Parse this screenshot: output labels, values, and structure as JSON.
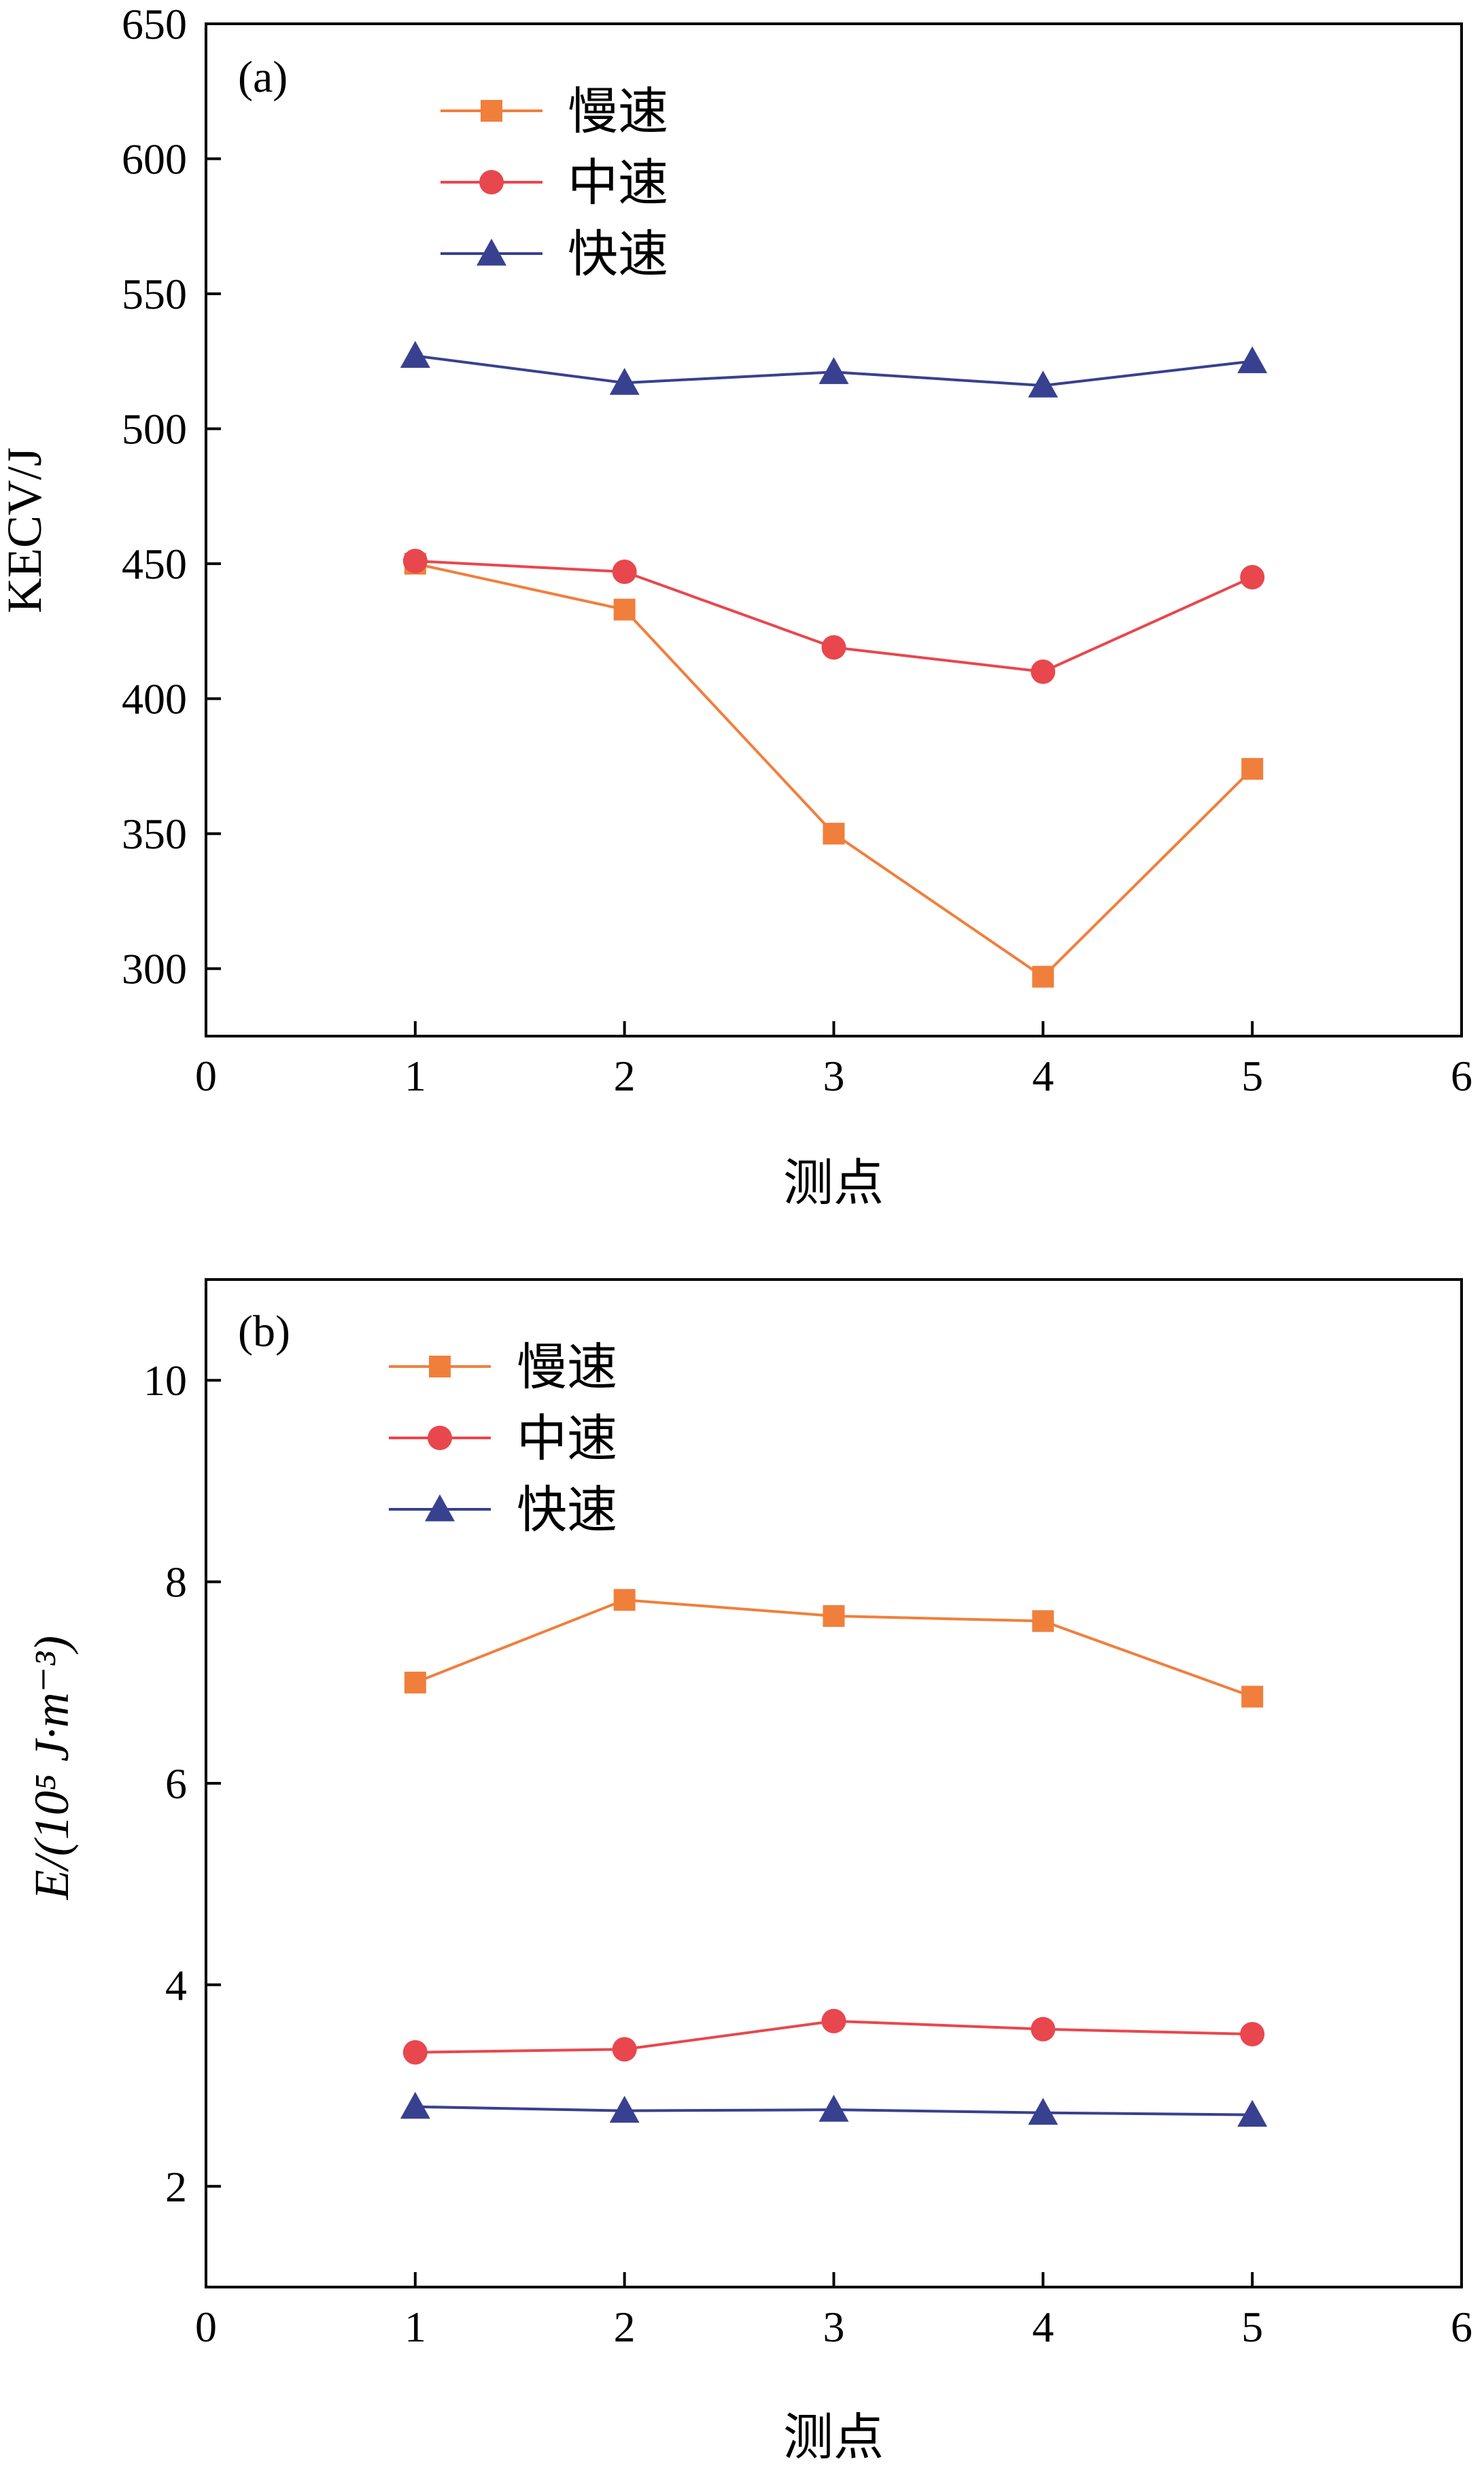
{
  "chart_data": [
    {
      "type": "line",
      "panel_label": "(a)",
      "xlabel": "测点",
      "ylabel": "KECV/J",
      "xlim": [
        0,
        6
      ],
      "ylim": [
        275,
        650
      ],
      "xticks": [
        0,
        1,
        2,
        3,
        4,
        5,
        6
      ],
      "yticks": [
        300,
        350,
        400,
        450,
        500,
        550,
        600,
        650
      ],
      "x": [
        1,
        2,
        3,
        4,
        5
      ],
      "legend_position": "top-left",
      "series": [
        {
          "name": "慢速",
          "marker": "square",
          "color": "#f07f3c",
          "values": [
            450,
            433,
            350,
            297,
            374
          ]
        },
        {
          "name": "中速",
          "marker": "circle",
          "color": "#e8474d",
          "values": [
            451,
            447,
            419,
            410,
            445
          ]
        },
        {
          "name": "快速",
          "marker": "triangle",
          "color": "#38418f",
          "values": [
            527,
            517,
            521,
            516,
            525
          ]
        }
      ]
    },
    {
      "type": "line",
      "panel_label": "(b)",
      "xlabel": "测点",
      "ylabel": "E/(10⁵ J·m⁻³)",
      "xlim": [
        0,
        6
      ],
      "ylim": [
        1,
        11
      ],
      "xticks": [
        0,
        1,
        2,
        3,
        4,
        5,
        6
      ],
      "yticks": [
        2,
        4,
        6,
        8,
        10
      ],
      "x": [
        1,
        2,
        3,
        4,
        5
      ],
      "legend_position": "top-left",
      "series": [
        {
          "name": "慢速",
          "marker": "square",
          "color": "#f07f3c",
          "values": [
            7.0,
            7.82,
            7.66,
            7.61,
            6.86
          ]
        },
        {
          "name": "中速",
          "marker": "circle",
          "color": "#e8474d",
          "values": [
            3.33,
            3.36,
            3.64,
            3.56,
            3.51
          ]
        },
        {
          "name": "快速",
          "marker": "triangle",
          "color": "#38418f",
          "values": [
            2.79,
            2.75,
            2.76,
            2.73,
            2.71
          ]
        }
      ]
    }
  ]
}
